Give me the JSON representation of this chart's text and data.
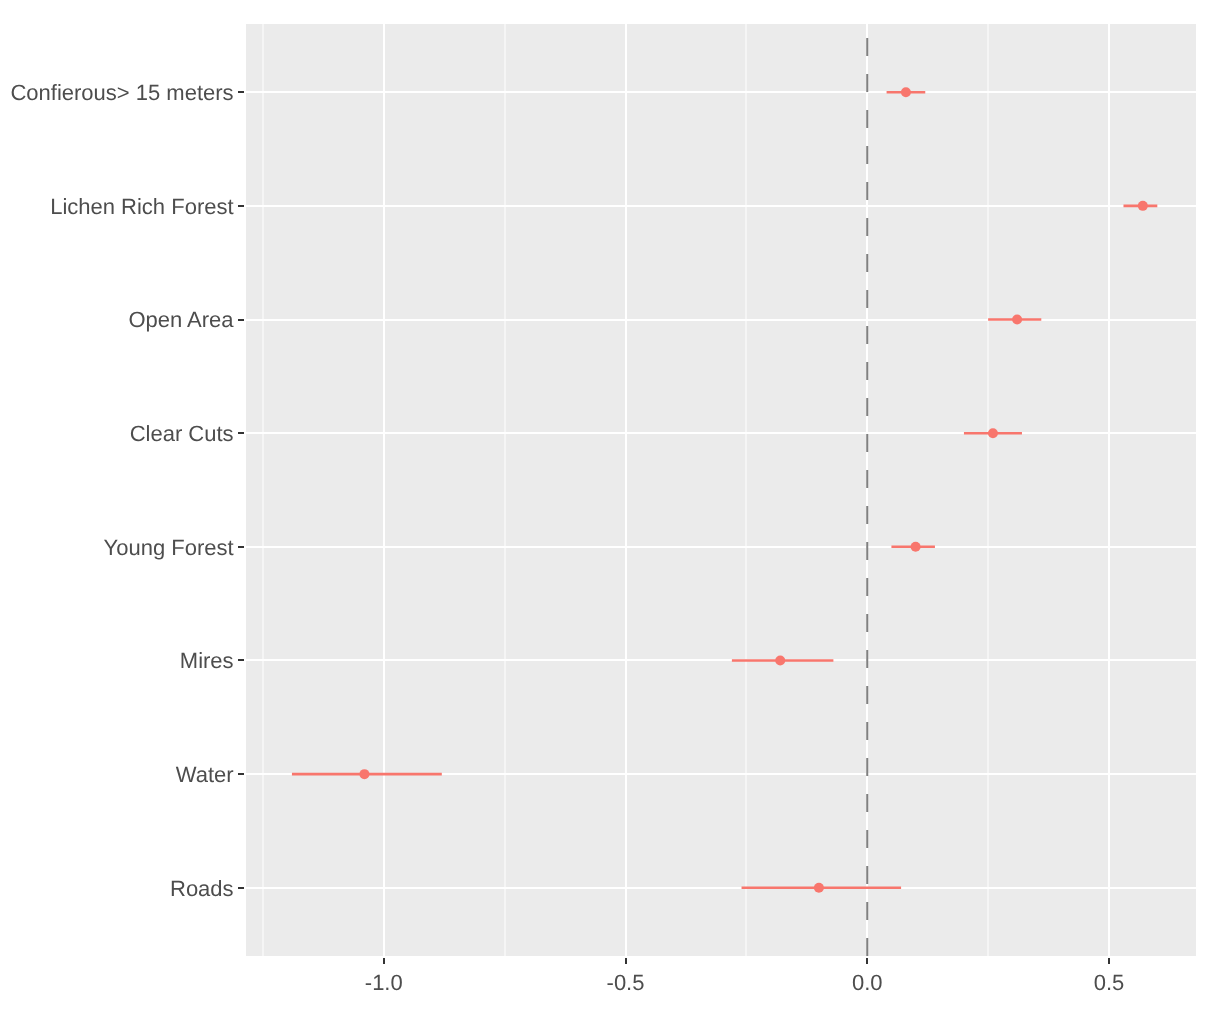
{
  "chart_data": {
    "type": "scatter",
    "orientation": "horizontal",
    "categories": [
      "Confierous> 15 meters",
      "Lichen Rich Forest",
      "Open Area",
      "Clear Cuts",
      "Young Forest",
      "Mires",
      "Water",
      "Roads"
    ],
    "color": "#f8766d",
    "values": [
      0.08,
      0.57,
      0.31,
      0.26,
      0.1,
      -0.18,
      -1.04,
      -0.1
    ],
    "errors": [
      [
        0.04,
        0.12
      ],
      [
        0.53,
        0.6
      ],
      [
        0.25,
        0.36
      ],
      [
        0.2,
        0.32
      ],
      [
        0.05,
        0.14
      ],
      [
        -0.28,
        -0.07
      ],
      [
        -1.19,
        -0.88
      ],
      [
        -0.26,
        0.07
      ]
    ],
    "xlim": [
      -1.285,
      0.68
    ],
    "xticks": [
      {
        "value": -1.25,
        "label": null
      },
      {
        "value": -1,
        "label": "-1.0"
      },
      {
        "value": -0.75,
        "label": null
      },
      {
        "value": -0.5,
        "label": "-0.5"
      },
      {
        "value": -0.25,
        "label": null
      },
      {
        "value": 0,
        "label": "0.0"
      },
      {
        "value": 0.25,
        "label": null
      },
      {
        "value": 0.5,
        "label": "0.5"
      }
    ],
    "ref_lines": [
      {
        "axis": "x",
        "value": 0,
        "color": "#808080",
        "line_style": "dashed"
      }
    ],
    "grid": true,
    "marker": "circle"
  }
}
